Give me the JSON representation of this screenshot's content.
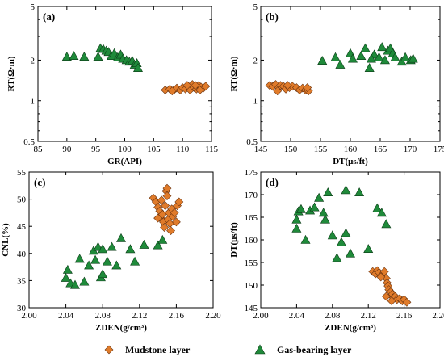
{
  "colors": {
    "mudstone": "#e07b2a",
    "gas": "#1f8a3a"
  },
  "legend": [
    {
      "label": "Mudstone layer",
      "marker": "diamond",
      "series": "mudstone"
    },
    {
      "label": "Gas-bearing layer",
      "marker": "triangle",
      "series": "gas"
    }
  ],
  "chart_data": [
    {
      "id": "a",
      "type": "scatter",
      "panel_label": "(a)",
      "xlabel": "GR(API)",
      "ylabel": "RT(Ω·m)",
      "xlim": [
        85,
        115
      ],
      "xticks": [
        85,
        90,
        95,
        100,
        105,
        110,
        115
      ],
      "ylim": [
        0.5,
        5
      ],
      "yscale": "log",
      "yticks": [
        0.5,
        1,
        2,
        5
      ],
      "series": [
        {
          "name": "Mudstone layer",
          "points": [
            [
              107,
              1.2
            ],
            [
              107.8,
              1.22
            ],
            [
              108.5,
              1.2
            ],
            [
              109,
              1.24
            ],
            [
              109.6,
              1.2
            ],
            [
              110,
              1.25
            ],
            [
              110.5,
              1.22
            ],
            [
              111,
              1.28
            ],
            [
              111.3,
              1.2
            ],
            [
              111.7,
              1.32
            ],
            [
              112,
              1.25
            ],
            [
              112.4,
              1.22
            ],
            [
              112.8,
              1.3
            ],
            [
              113.2,
              1.26
            ],
            [
              113.6,
              1.24
            ],
            [
              114,
              1.28
            ],
            [
              110.8,
              1.3
            ],
            [
              112.2,
              1.3
            ],
            [
              108.2,
              1.18
            ],
            [
              113,
              1.2
            ]
          ]
        },
        {
          "name": "Gas-bearing layer",
          "points": [
            [
              90,
              2.12
            ],
            [
              91.2,
              2.15
            ],
            [
              93,
              2.12
            ],
            [
              95.4,
              2.12
            ],
            [
              95.8,
              2.45
            ],
            [
              96.3,
              2.42
            ],
            [
              96.8,
              2.35
            ],
            [
              97.2,
              2.3
            ],
            [
              97.7,
              2.15
            ],
            [
              98.2,
              2.25
            ],
            [
              98.8,
              2.1
            ],
            [
              99.3,
              2.2
            ],
            [
              99.7,
              2.05
            ],
            [
              100.3,
              2.0
            ],
            [
              100.8,
              1.95
            ],
            [
              101.3,
              1.98
            ],
            [
              101.7,
              1.85
            ],
            [
              102.1,
              1.9
            ],
            [
              102.3,
              1.75
            ]
          ]
        }
      ]
    },
    {
      "id": "b",
      "type": "scatter",
      "panel_label": "(b)",
      "xlabel": "DT(μs/ft)",
      "ylabel": "RT(Ω·m)",
      "xlim": [
        145,
        175
      ],
      "xticks": [
        145,
        150,
        155,
        160,
        165,
        170,
        175
      ],
      "ylim": [
        0.5,
        5
      ],
      "yscale": "log",
      "yticks": [
        0.5,
        1,
        2,
        5
      ],
      "series": [
        {
          "name": "Mudstone layer",
          "points": [
            [
              146.5,
              1.3
            ],
            [
              147,
              1.28
            ],
            [
              147.5,
              1.32
            ],
            [
              148,
              1.25
            ],
            [
              148.3,
              1.3
            ],
            [
              148.8,
              1.28
            ],
            [
              149.2,
              1.22
            ],
            [
              149.8,
              1.25
            ],
            [
              150.3,
              1.28
            ],
            [
              151,
              1.25
            ],
            [
              151.5,
              1.2
            ],
            [
              152,
              1.24
            ],
            [
              152.5,
              1.2
            ],
            [
              153,
              1.18
            ],
            [
              147.8,
              1.18
            ],
            [
              152.8,
              1.25
            ],
            [
              149.5,
              1.3
            ]
          ]
        },
        {
          "name": "Gas-bearing layer",
          "points": [
            [
              155.3,
              1.98
            ],
            [
              157.5,
              2.1
            ],
            [
              158.3,
              1.85
            ],
            [
              160,
              2.25
            ],
            [
              160.4,
              2.05
            ],
            [
              161.8,
              2.15
            ],
            [
              162.5,
              2.45
            ],
            [
              163.2,
              1.75
            ],
            [
              164,
              2.2
            ],
            [
              164.8,
              2.1
            ],
            [
              165.3,
              2.5
            ],
            [
              165.8,
              2.0
            ],
            [
              166.3,
              2.35
            ],
            [
              166.7,
              2.45
            ],
            [
              167.1,
              2.25
            ],
            [
              167.5,
              2.1
            ],
            [
              168.6,
              1.95
            ],
            [
              169.2,
              2.1
            ],
            [
              170.1,
              2.0
            ],
            [
              170.5,
              2.05
            ],
            [
              163.5,
              2.05
            ]
          ]
        }
      ]
    },
    {
      "id": "c",
      "type": "scatter",
      "panel_label": "(c)",
      "xlabel": "ZDEN(g/cm³)",
      "ylabel": "CNL(%)",
      "xlim": [
        2.0,
        2.2
      ],
      "xticks": [
        "2.00",
        "2.04",
        "2.08",
        "2.12",
        "2.16",
        "2.20"
      ],
      "ylim": [
        30,
        55
      ],
      "yticks": [
        30,
        35,
        40,
        45,
        50,
        55
      ],
      "series": [
        {
          "name": "Mudstone layer",
          "points": [
            [
              2.135,
              50.2
            ],
            [
              2.138,
              49.5
            ],
            [
              2.14,
              48.5
            ],
            [
              2.142,
              47.8
            ],
            [
              2.143,
              46.5
            ],
            [
              2.145,
              47.2
            ],
            [
              2.146,
              45.8
            ],
            [
              2.147,
              44.8
            ],
            [
              2.148,
              48.8
            ],
            [
              2.149,
              51.5
            ],
            [
              2.15,
              52
            ],
            [
              2.151,
              46.2
            ],
            [
              2.152,
              47.5
            ],
            [
              2.153,
              45.5
            ],
            [
              2.154,
              44.2
            ],
            [
              2.155,
              48.2
            ],
            [
              2.156,
              46.8
            ],
            [
              2.158,
              47.5
            ],
            [
              2.16,
              45.8
            ],
            [
              2.161,
              48.8
            ],
            [
              2.163,
              49.5
            ],
            [
              2.144,
              49.8
            ],
            [
              2.15,
              50.6
            ],
            [
              2.14,
              46.5
            ]
          ]
        },
        {
          "name": "Gas-bearing layer",
          "points": [
            [
              2.04,
              35.5
            ],
            [
              2.042,
              37
            ],
            [
              2.045,
              34.5
            ],
            [
              2.05,
              34.2
            ],
            [
              2.055,
              39
            ],
            [
              2.06,
              34.8
            ],
            [
              2.065,
              37.8
            ],
            [
              2.07,
              40.5
            ],
            [
              2.072,
              38.8
            ],
            [
              2.075,
              41.2
            ],
            [
              2.078,
              35.6
            ],
            [
              2.08,
              40.8
            ],
            [
              2.085,
              38.5
            ],
            [
              2.09,
              41.2
            ],
            [
              2.095,
              37.8
            ],
            [
              2.1,
              42.8
            ],
            [
              2.11,
              40.8
            ],
            [
              2.115,
              38.5
            ],
            [
              2.125,
              41.6
            ],
            [
              2.14,
              41.5
            ],
            [
              2.145,
              42.5
            ],
            [
              2.08,
              36.2
            ]
          ]
        }
      ]
    },
    {
      "id": "d",
      "type": "scatter",
      "panel_label": "(d)",
      "xlabel": "ZDEN(g/cm³)",
      "ylabel": "DT(μs/ft)",
      "xlim": [
        2.0,
        2.2
      ],
      "xticks": [
        "2.00",
        "2.04",
        "2.08",
        "2.12",
        "2.16",
        "2.20"
      ],
      "ylim": [
        145,
        175
      ],
      "yticks": [
        145,
        150,
        155,
        160,
        165,
        170,
        175
      ],
      "series": [
        {
          "name": "Mudstone layer",
          "points": [
            [
              2.125,
              153
            ],
            [
              2.128,
              152.5
            ],
            [
              2.13,
              153.2
            ],
            [
              2.132,
              152.8
            ],
            [
              2.135,
              152.2
            ],
            [
              2.138,
              153
            ],
            [
              2.14,
              151.5
            ],
            [
              2.141,
              150.5
            ],
            [
              2.142,
              149.8
            ],
            [
              2.143,
              149
            ],
            [
              2.145,
              148.5
            ],
            [
              2.147,
              148
            ],
            [
              2.148,
              147.2
            ],
            [
              2.15,
              147.5
            ],
            [
              2.152,
              146.8
            ],
            [
              2.155,
              147
            ],
            [
              2.158,
              146.5
            ],
            [
              2.16,
              146.8
            ],
            [
              2.163,
              146.2
            ],
            [
              2.134,
              151.8
            ],
            [
              2.146,
              146.5
            ],
            [
              2.14,
              147.5
            ]
          ]
        },
        {
          "name": "Gas-bearing layer",
          "points": [
            [
              2.04,
              164.5
            ],
            [
              2.042,
              166.3
            ],
            [
              2.045,
              166.8
            ],
            [
              2.05,
              160
            ],
            [
              2.055,
              166.5
            ],
            [
              2.06,
              167.2
            ],
            [
              2.065,
              169.3
            ],
            [
              2.07,
              166
            ],
            [
              2.072,
              164.5
            ],
            [
              2.075,
              170.5
            ],
            [
              2.08,
              161
            ],
            [
              2.085,
              156
            ],
            [
              2.09,
              159.5
            ],
            [
              2.095,
              171
            ],
            [
              2.1,
              157
            ],
            [
              2.11,
              170.5
            ],
            [
              2.12,
              158
            ],
            [
              2.13,
              167
            ],
            [
              2.135,
              166
            ],
            [
              2.14,
              163.5
            ],
            [
              2.04,
              162.5
            ],
            [
              2.095,
              161.5
            ]
          ]
        }
      ]
    }
  ]
}
